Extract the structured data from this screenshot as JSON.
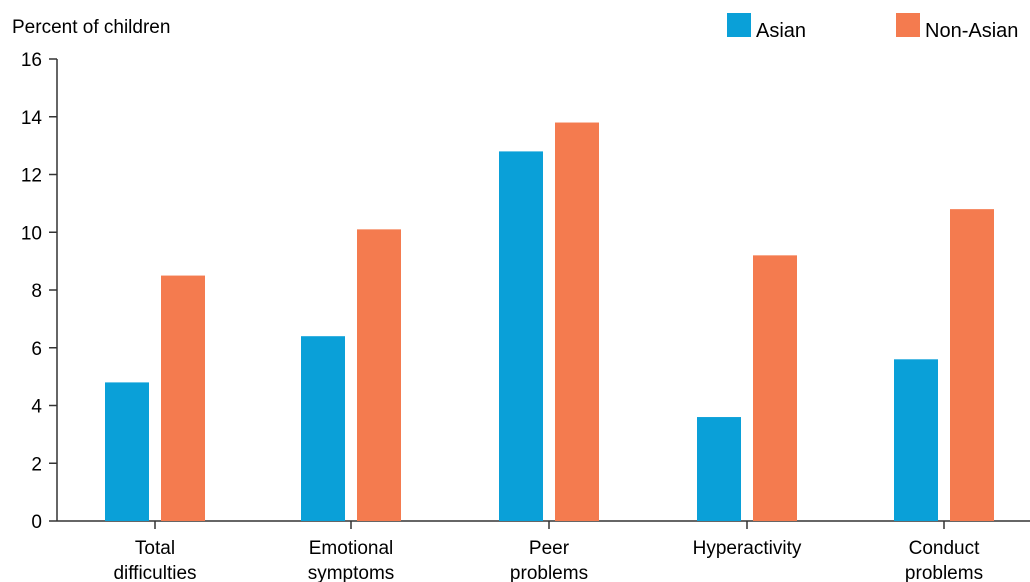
{
  "chart_data": {
    "type": "bar",
    "title": "",
    "xlabel": "",
    "ylabel": "Percent of children",
    "ylim": [
      0,
      16
    ],
    "yticks": [
      0,
      2,
      4,
      6,
      8,
      10,
      12,
      14,
      16
    ],
    "grid": false,
    "legend_position": "top-right",
    "categories": [
      [
        "Total",
        "difficulties"
      ],
      [
        "Emotional",
        "symptoms"
      ],
      [
        "Peer",
        "problems"
      ],
      [
        "Hyperactivity"
      ],
      [
        "Conduct",
        "problems"
      ]
    ],
    "series": [
      {
        "name": "Asian",
        "color": "#0aa0d8",
        "values": [
          4.8,
          6.4,
          12.8,
          3.6,
          5.6
        ]
      },
      {
        "name": "Non-Asian",
        "color": "#f47b4f",
        "values": [
          8.5,
          10.1,
          13.8,
          9.2,
          10.8
        ]
      }
    ]
  }
}
